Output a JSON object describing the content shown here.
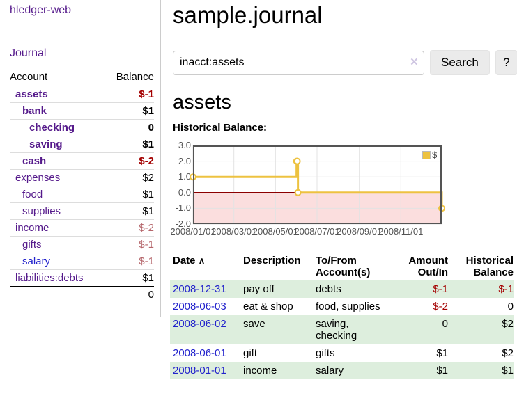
{
  "app": {
    "brand": "hledger-web"
  },
  "sidebar": {
    "nav_journal": "Journal",
    "accounts": {
      "header_account": "Account",
      "header_balance": "Balance",
      "rows": [
        {
          "name": "assets",
          "balance": "$-1"
        },
        {
          "name": "bank",
          "balance": "$1"
        },
        {
          "name": "checking",
          "balance": "0"
        },
        {
          "name": "saving",
          "balance": "$1"
        },
        {
          "name": "cash",
          "balance": "$-2"
        },
        {
          "name": "expenses",
          "balance": "$2"
        },
        {
          "name": "food",
          "balance": "$1"
        },
        {
          "name": "supplies",
          "balance": "$1"
        },
        {
          "name": "income",
          "balance": "$-2"
        },
        {
          "name": "gifts",
          "balance": "$-1"
        },
        {
          "name": "salary",
          "balance": "$-1"
        },
        {
          "name": "liabilities:debts",
          "balance": "$1"
        }
      ],
      "total": "0"
    }
  },
  "main": {
    "title": "sample.journal",
    "search": {
      "value": "inacct:assets",
      "clear_icon": "×",
      "button_label": "Search",
      "help_label": "?"
    },
    "account_title": "assets",
    "chart_label": "Historical Balance:"
  },
  "chart_data": {
    "type": "line",
    "title": "Historical Balance",
    "step": true,
    "grid": true,
    "legend": "$",
    "legend_position": "top-right",
    "ylim": [
      -2,
      3
    ],
    "yticks": [
      3,
      2,
      1,
      0,
      -1,
      -2
    ],
    "xticks": [
      "2008/01/01",
      "2008/03/01",
      "2008/05/01",
      "2008/07/01",
      "2008/09/01",
      "2008/11/01"
    ],
    "xtick_days": [
      0,
      60,
      121,
      182,
      244,
      305
    ],
    "xlim_days": [
      0,
      365
    ],
    "series": [
      {
        "name": "$",
        "color": "#edc240",
        "points": [
          {
            "date": "2008-01-01",
            "day": 0,
            "value": 1
          },
          {
            "date": "2008-06-01",
            "day": 152,
            "value": 2
          },
          {
            "date": "2008-06-02",
            "day": 153,
            "value": 2
          },
          {
            "date": "2008-06-03",
            "day": 154,
            "value": 0
          },
          {
            "date": "2008-12-31",
            "day": 365,
            "value": -1
          }
        ]
      }
    ],
    "zero_line_color": "#8b0000",
    "negative_region_color": "#fbdede",
    "grid_color": "#e3e3e3",
    "border_color": "#545454"
  },
  "register": {
    "headers": {
      "date": "Date",
      "sort_icon": "∧",
      "description": "Description",
      "accounts": "To/From\nAccount(s)",
      "amount": "Amount\nOut/In",
      "balance": "Historical\nBalance"
    },
    "rows": [
      {
        "date": "2008-12-31",
        "description": "pay off",
        "accounts": "debts",
        "amount": "$-1",
        "balance": "$-1"
      },
      {
        "date": "2008-06-03",
        "description": "eat & shop",
        "accounts": "food, supplies",
        "amount": "$-2",
        "balance": "0"
      },
      {
        "date": "2008-06-02",
        "description": "save",
        "accounts": "saving, checking",
        "amount": "0",
        "balance": "$2"
      },
      {
        "date": "2008-06-01",
        "description": "gift",
        "accounts": "gifts",
        "amount": "$1",
        "balance": "$2"
      },
      {
        "date": "2008-01-01",
        "description": "income",
        "accounts": "salary",
        "amount": "$1",
        "balance": "$1"
      }
    ]
  }
}
